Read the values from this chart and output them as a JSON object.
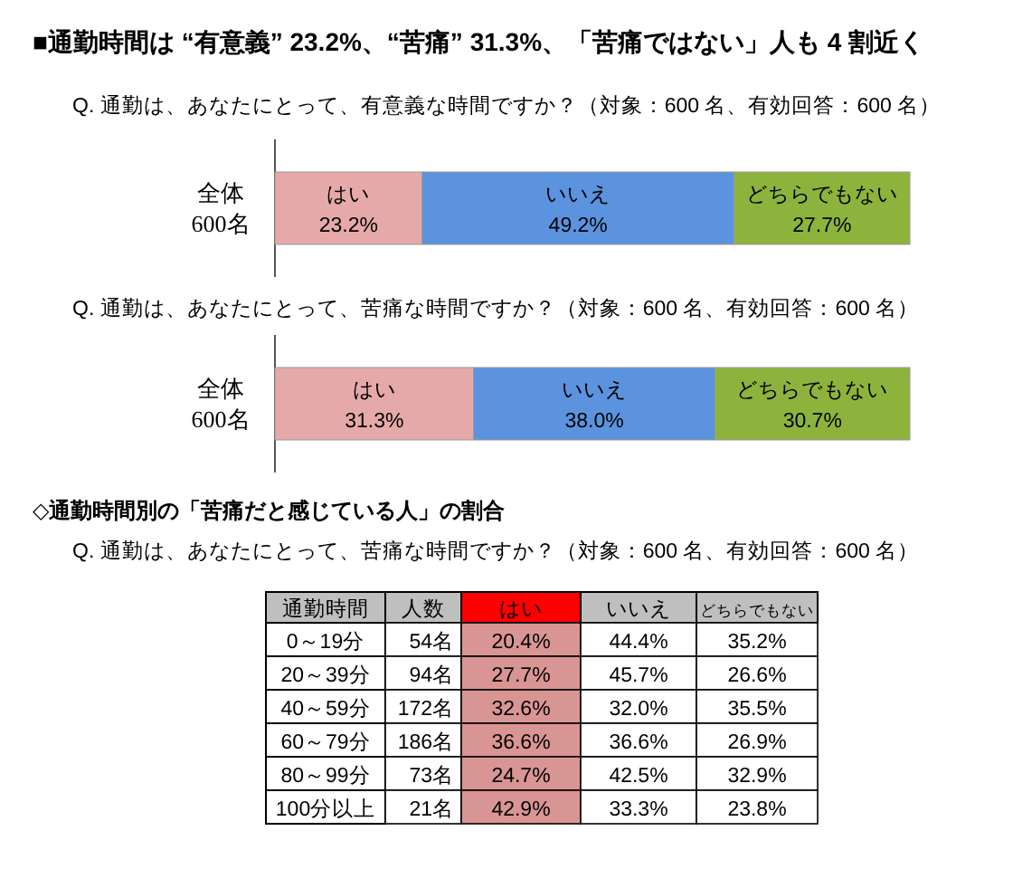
{
  "chart_data": [
    {
      "type": "bar",
      "orientation": "horizontal",
      "stacked": true,
      "title": "■通勤時間は “有意義” 23.2%、“苦痛” 31.3%、「苦痛ではない」人も 4 割近く",
      "subtitle": "Q.  通勤は、あなたにとって、有意義な時間ですか？（対象：600 名、有効回答：600 名）",
      "categories": [
        "全体 600名"
      ],
      "xlim": [
        0,
        100.1
      ],
      "tick_labels": "y",
      "series": [
        {
          "name": "はい",
          "color": "#e6a9a9",
          "values": [
            23.2
          ],
          "value_labels": [
            "23.2%"
          ]
        },
        {
          "name": "いいえ",
          "color": "#5b93de",
          "values": [
            49.2
          ],
          "value_labels": [
            "49.2%"
          ]
        },
        {
          "name": "どちらでもない",
          "color": "#8db33c",
          "values": [
            27.7
          ],
          "value_labels": [
            "27.7%"
          ]
        }
      ]
    },
    {
      "type": "bar",
      "orientation": "horizontal",
      "stacked": true,
      "subtitle": "Q.  通勤は、あなたにとって、苦痛な時間ですか？（対象：600 名、有効回答：600 名）",
      "categories": [
        "全体 600名"
      ],
      "xlim": [
        0,
        100
      ],
      "tick_labels": "y",
      "series": [
        {
          "name": "はい",
          "color": "#e6a9a9",
          "values": [
            31.3
          ],
          "value_labels": [
            "31.3%"
          ]
        },
        {
          "name": "いいえ",
          "color": "#5b93de",
          "values": [
            38.0
          ],
          "value_labels": [
            "38.0%"
          ]
        },
        {
          "name": "どちらでもない",
          "color": "#8db33c",
          "values": [
            30.7
          ],
          "value_labels": [
            "30.7%"
          ]
        }
      ]
    },
    {
      "type": "heatmap",
      "title": "◇通勤時間別の「苦痛だと感じている人」の割合",
      "subtitle": "Q.  通勤は、あなたにとって、苦痛な時間ですか？（対象：600 名、有効回答：600 名）",
      "ylabel": "通勤時間",
      "categories": [
        "人数",
        "はい",
        "いいえ",
        "どちらでもない"
      ],
      "y_categories": [
        "0～19分",
        "20～39分",
        "40～59分",
        "60～79分",
        "80～99分",
        "100分以上"
      ],
      "colors": [
        "#ffffff",
        "#d99594",
        "#ffffff",
        "#ffffff"
      ],
      "cells": [
        [
          54,
          20.4,
          44.4,
          35.2
        ],
        [
          94,
          27.7,
          45.7,
          26.6
        ],
        [
          172,
          32.6,
          32.0,
          35.5
        ],
        [
          186,
          36.6,
          36.6,
          26.9
        ],
        [
          73,
          24.7,
          42.5,
          32.9
        ],
        [
          21,
          42.9,
          33.3,
          23.8
        ]
      ],
      "cell_labels": [
        [
          "54名",
          "20.4%",
          "44.4%",
          "35.2%"
        ],
        [
          "94名",
          "27.7%",
          "45.7%",
          "26.6%"
        ],
        [
          "172名",
          "32.6%",
          "32.0%",
          "35.5%"
        ],
        [
          "186名",
          "36.6%",
          "36.6%",
          "26.9%"
        ],
        [
          "73名",
          "24.7%",
          "42.5%",
          "32.9%"
        ],
        [
          "21名",
          "42.9%",
          "33.3%",
          "23.8%"
        ]
      ]
    }
  ]
}
